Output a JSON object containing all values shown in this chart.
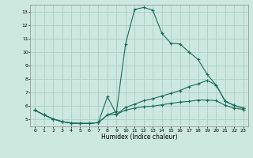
{
  "bg_color": "#cde8df",
  "grid_color": "#aacfc5",
  "line_color": "#1a6b5a",
  "xlabel": "Humidex (Indice chaleur)",
  "xlim": [
    -0.5,
    23.5
  ],
  "ylim": [
    4.5,
    13.5
  ],
  "xticks": [
    0,
    1,
    2,
    3,
    4,
    5,
    6,
    7,
    8,
    9,
    10,
    11,
    12,
    13,
    14,
    15,
    16,
    17,
    18,
    19,
    20,
    21,
    22,
    23
  ],
  "yticks": [
    5,
    6,
    7,
    8,
    9,
    10,
    11,
    12,
    13
  ],
  "line1_x": [
    0,
    1,
    2,
    3,
    4,
    5,
    6,
    7,
    8,
    9,
    10,
    11,
    12,
    13,
    14,
    15,
    16,
    17,
    18,
    19,
    20,
    21,
    22,
    23
  ],
  "line1_y": [
    5.7,
    5.35,
    5.05,
    4.85,
    4.75,
    4.72,
    4.72,
    4.78,
    5.35,
    5.6,
    10.6,
    13.15,
    13.3,
    13.1,
    11.4,
    10.65,
    10.6,
    10.0,
    9.45,
    8.35,
    7.55,
    6.35,
    6.05,
    5.85
  ],
  "line2_x": [
    0,
    1,
    2,
    3,
    4,
    5,
    6,
    7,
    8,
    9,
    10,
    11,
    12,
    13,
    14,
    15,
    16,
    17,
    18,
    19,
    20,
    21,
    22,
    23
  ],
  "line2_y": [
    5.7,
    5.35,
    5.05,
    4.85,
    4.75,
    4.72,
    4.72,
    4.78,
    6.7,
    5.4,
    5.9,
    6.15,
    6.4,
    6.55,
    6.75,
    6.95,
    7.15,
    7.45,
    7.65,
    7.9,
    7.55,
    6.35,
    6.05,
    5.85
  ],
  "line3_x": [
    0,
    1,
    2,
    3,
    4,
    5,
    6,
    7,
    8,
    9,
    10,
    11,
    12,
    13,
    14,
    15,
    16,
    17,
    18,
    19,
    20,
    21,
    22,
    23
  ],
  "line3_y": [
    5.7,
    5.35,
    5.05,
    4.85,
    4.75,
    4.72,
    4.72,
    4.78,
    5.35,
    5.4,
    5.7,
    5.85,
    5.95,
    6.0,
    6.1,
    6.2,
    6.3,
    6.35,
    6.45,
    6.45,
    6.4,
    6.05,
    5.85,
    5.75
  ]
}
